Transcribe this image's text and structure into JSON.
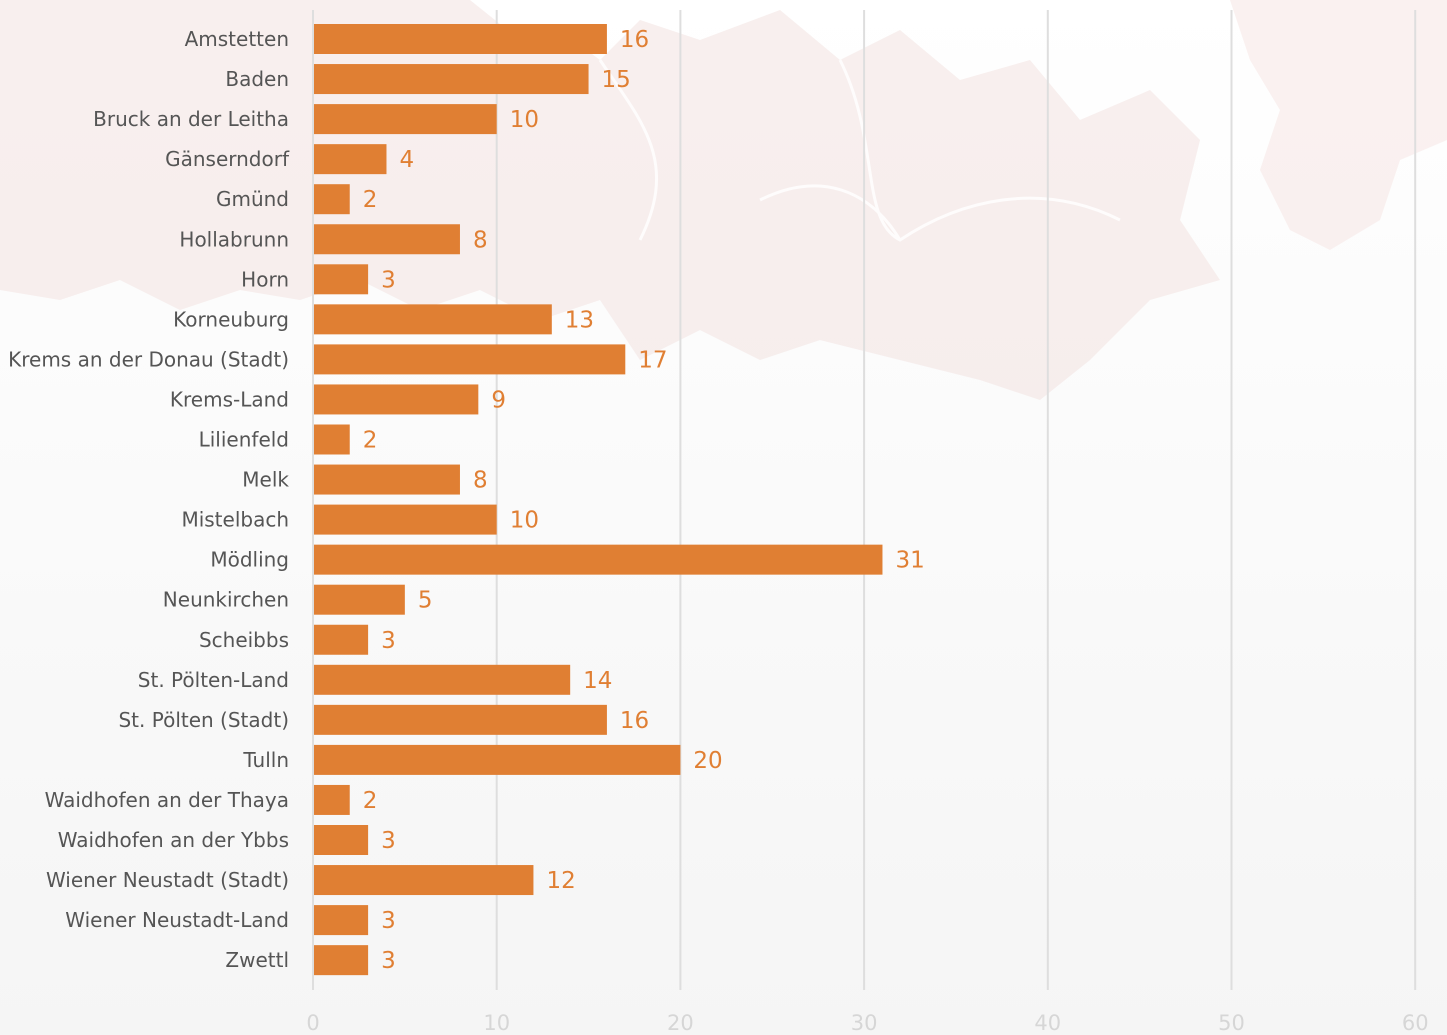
{
  "chart_data": {
    "type": "bar",
    "orientation": "horizontal",
    "title": "",
    "xlabel": "",
    "ylabel": "",
    "categories": [
      "Amstetten",
      "Baden",
      "Bruck an der Leitha",
      "Gänserndorf",
      "Gmünd",
      "Hollabrunn",
      "Horn",
      "Korneuburg",
      "Krems an der Donau (Stadt)",
      "Krems-Land",
      "Lilienfeld",
      "Melk",
      "Mistelbach",
      "Mödling",
      "Neunkirchen",
      "Scheibbs",
      "St. Pölten-Land",
      "St. Pölten (Stadt)",
      "Tulln",
      "Waidhofen an der Thaya",
      "Waidhofen an der Ybbs",
      "Wiener Neustadt (Stadt)",
      "Wiener Neustadt-Land",
      "Zwettl"
    ],
    "values": [
      16,
      15,
      10,
      4,
      2,
      8,
      3,
      13,
      17,
      9,
      2,
      8,
      10,
      31,
      5,
      3,
      14,
      16,
      20,
      2,
      3,
      12,
      3,
      3
    ],
    "xlim": [
      0,
      60
    ],
    "ticks": [
      "0",
      "10",
      "20",
      "30",
      "40",
      "50",
      "60"
    ],
    "grid": true,
    "legend": "none",
    "bar_color": "#e07f33",
    "value_label_color": "#e07f33",
    "background_decoration": "faded map of Lower Austria districts"
  }
}
